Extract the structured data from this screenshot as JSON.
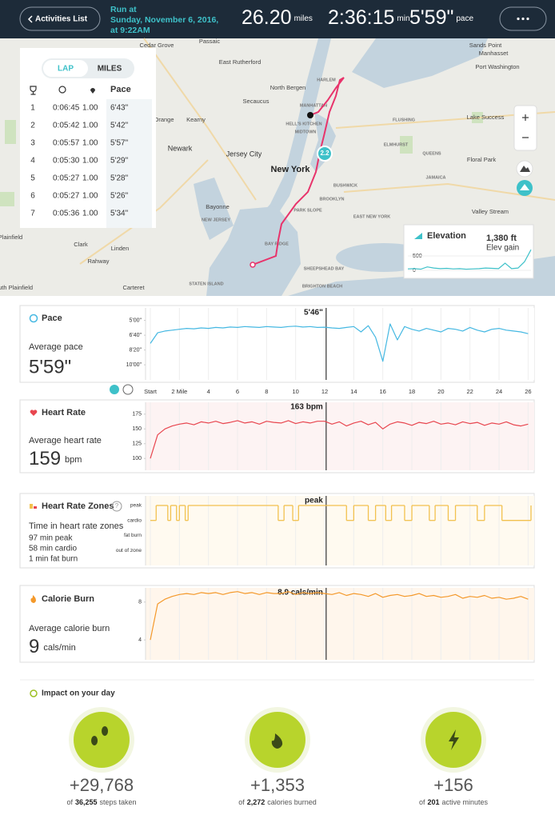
{
  "header": {
    "back": "Activities List",
    "title": "Run at",
    "date": "Sunday, November 6, 2016,",
    "time": "at 9:22AM",
    "distance": "26.20",
    "distance_unit": "miles",
    "duration": "2:36:15",
    "duration_unit": "min",
    "pace": "5'59\"",
    "pace_unit": "pace"
  },
  "map": {
    "labels": [
      "Cedar Grove",
      "Passaic",
      "East Rutherford",
      "North Bergen",
      "Secaucus",
      "Kearny",
      "Newark",
      "Orange",
      "Jersey City",
      "New York",
      "Bayonne",
      "HARLEM",
      "MANHATTAN",
      "MIDTOWN",
      "HELL'S KITCHEN",
      "QUEENS",
      "BROOKLYN",
      "FLUSHING",
      "ELMHURST",
      "JAMAICA",
      "BUSHWICK",
      "EAST NEW YORK",
      "PARK SLOPE",
      "BAY RIDGE",
      "SHEEPSHEAD BAY",
      "BRIGHTON BEACH",
      "Lake Success",
      "Floral Park",
      "Valley Stream",
      "Manhasset",
      "Port Washington",
      "Sands Point",
      "Plainfield",
      "Clark",
      "Rahway",
      "Linden",
      "Carteret",
      "South Plainfield",
      "STATEN ISLAND",
      "NEW JERSEY"
    ],
    "mile_marker": "2.2"
  },
  "laps": {
    "tabs": [
      "LAP",
      "MILES"
    ],
    "pace_header": "Pace",
    "rows": [
      [
        "1",
        "0:06:45",
        "1.00",
        "6'43\""
      ],
      [
        "2",
        "0:05:42",
        "1.00",
        "5'42\""
      ],
      [
        "3",
        "0:05:57",
        "1.00",
        "5'57\""
      ],
      [
        "4",
        "0:05:30",
        "1.00",
        "5'29\""
      ],
      [
        "5",
        "0:05:27",
        "1.00",
        "5'28\""
      ],
      [
        "6",
        "0:05:27",
        "1.00",
        "5'26\""
      ],
      [
        "7",
        "0:05:36",
        "1.00",
        "5'34\""
      ]
    ]
  },
  "elevation": {
    "title": "Elevation",
    "gain": "1,380 ft",
    "gain_label": "Elev gain",
    "ylim": [
      0,
      780
    ],
    "yticks": [
      0,
      500
    ],
    "values": [
      50,
      60,
      40,
      120,
      80,
      60,
      70,
      50,
      60,
      40,
      50,
      60,
      80,
      70,
      60,
      250,
      60,
      80,
      300,
      720
    ]
  },
  "distance_axis": {
    "xlim": [
      0,
      26.2
    ],
    "xticks": [
      {
        "value": 0,
        "label": "Start"
      },
      {
        "value": 2,
        "label": "2 Mile"
      },
      4,
      6,
      8,
      10,
      12,
      14,
      16,
      18,
      20,
      22,
      24,
      26
    ],
    "cursor_x": 12.1,
    "x": [
      0,
      0.5,
      1,
      1.5,
      2,
      2.5,
      3,
      3.5,
      4,
      4.5,
      5,
      5.5,
      6,
      6.5,
      7,
      7.5,
      8,
      8.5,
      9,
      9.5,
      10,
      10.5,
      11,
      11.5,
      12,
      12.5,
      13,
      13.5,
      14,
      14.5,
      15,
      15.5,
      16,
      16.5,
      17,
      17.5,
      18,
      18.5,
      19,
      19.5,
      20,
      20.5,
      21,
      21.5,
      22,
      22.5,
      23,
      23.5,
      24,
      24.5,
      25,
      25.5,
      26
    ]
  },
  "pace": {
    "title": "Pace",
    "average_label": "Average pace",
    "average": "5'59\"",
    "cursor_label": "5'46\"",
    "ylim": [
      11.7,
      3.6
    ],
    "yticks": [
      {
        "value": 5,
        "label": "5'00\""
      },
      {
        "value": 6.667,
        "label": "6'40\""
      },
      {
        "value": 8.333,
        "label": "8'20\""
      },
      {
        "value": 10,
        "label": "10'00\""
      }
    ],
    "color": "#45b8e2",
    "values": [
      7.6,
      6.4,
      6.2,
      6.1,
      6.0,
      5.9,
      5.95,
      5.85,
      5.9,
      5.8,
      5.85,
      5.75,
      5.8,
      5.7,
      5.75,
      5.8,
      5.7,
      5.75,
      5.8,
      5.7,
      5.65,
      5.75,
      5.7,
      5.8,
      5.77,
      5.85,
      5.9,
      5.8,
      5.7,
      6.3,
      5.6,
      6.9,
      9.6,
      5.4,
      7.2,
      5.7,
      6.0,
      6.2,
      5.9,
      6.1,
      6.3,
      5.9,
      6.0,
      6.2,
      5.8,
      6.1,
      6.3,
      6.0,
      5.9,
      6.1,
      6.2,
      6.3,
      6.5
    ]
  },
  "heart_rate": {
    "title": "Heart Rate",
    "average_label": "Average heart rate",
    "average": "159",
    "unit": "bpm",
    "cursor_label": "163 bpm",
    "ylim": [
      80,
      195
    ],
    "yticks": [
      100,
      125,
      150,
      175
    ],
    "color": "#e8464f",
    "values": [
      100,
      140,
      150,
      155,
      158,
      160,
      157,
      162,
      160,
      163,
      159,
      161,
      164,
      160,
      162,
      158,
      163,
      161,
      160,
      164,
      159,
      162,
      160,
      163,
      163,
      158,
      162,
      155,
      160,
      163,
      157,
      161,
      150,
      158,
      162,
      160,
      156,
      161,
      159,
      163,
      158,
      160,
      157,
      162,
      159,
      161,
      156,
      160,
      158,
      162,
      157,
      155,
      158
    ]
  },
  "zones": {
    "title": "Heart Rate Zones",
    "help": "?",
    "summary_label": "Time in heart rate zones",
    "summary": [
      "97 min peak",
      "58 min cardio",
      "1 min fat burn"
    ],
    "cursor_label": "peak",
    "categories": [
      "peak",
      "cardio",
      "fat burn",
      "out of zone"
    ],
    "color": "#f2c14e",
    "x": [
      0,
      0.4,
      1.2,
      1.4,
      1.8,
      2.0,
      2.4,
      2.6,
      8.8,
      9.2,
      9.8,
      10.2,
      13.5,
      14.0,
      15.0,
      15.5,
      16.2,
      16.6,
      17.5,
      18.0,
      19.2,
      19.6,
      20.5,
      21.0,
      22.5,
      23.0,
      24.2,
      26.2
    ],
    "values": [
      1,
      0,
      1,
      0,
      1,
      0,
      1,
      0,
      1,
      0,
      1,
      0,
      1,
      0,
      1,
      0,
      1,
      0,
      1,
      0,
      1,
      0,
      1,
      0,
      1,
      0,
      1,
      0
    ]
  },
  "calories": {
    "title": "Calorie Burn",
    "average_label": "Average calorie burn",
    "average": "9",
    "unit": "cals/min",
    "cursor_label": "8.9 cals/min",
    "ylim": [
      1.9,
      9.5
    ],
    "yticks": [
      4,
      8
    ],
    "color": "#f4992b",
    "values": [
      4,
      7.8,
      8.3,
      8.6,
      8.8,
      8.9,
      8.8,
      9.0,
      8.9,
      9.0,
      8.8,
      9.0,
      9.1,
      8.9,
      9.0,
      8.8,
      9.0,
      8.9,
      8.9,
      9.1,
      8.8,
      9.0,
      8.9,
      9.0,
      8.9,
      8.8,
      9.0,
      8.7,
      8.9,
      8.8,
      8.6,
      8.9,
      8.5,
      8.7,
      8.8,
      8.6,
      8.7,
      8.9,
      8.6,
      8.7,
      8.5,
      8.6,
      8.8,
      8.4,
      8.6,
      8.5,
      8.7,
      8.4,
      8.5,
      8.3,
      8.4,
      8.6,
      8.3
    ]
  },
  "impact": {
    "title": "Impact on your day",
    "items": [
      {
        "gain": "+29,768",
        "of": "of",
        "total": "36,255",
        "unit": "steps taken"
      },
      {
        "gain": "+1,353",
        "of": "of",
        "total": "2,272",
        "unit": "calories burned"
      },
      {
        "gain": "+156",
        "of": "of",
        "total": "201",
        "unit": "active minutes"
      }
    ]
  }
}
